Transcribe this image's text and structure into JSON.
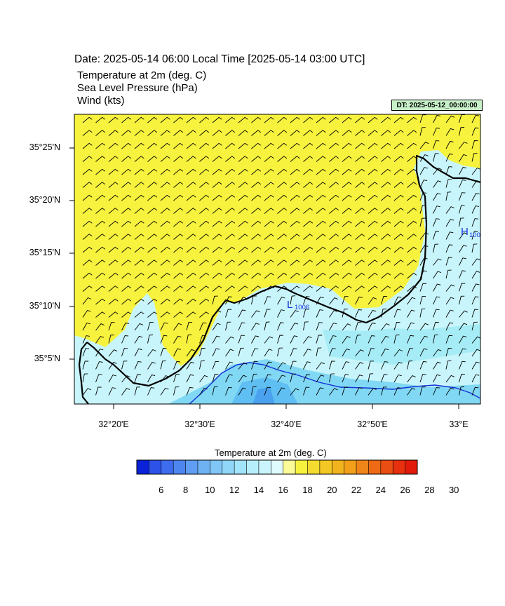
{
  "header": {
    "title": "Date: 2025-05-14  06:00 Local Time [2025-05-14  03:00 UTC]",
    "variables": [
      "Temperature at 2m   (deg. C)",
      "Sea Level Pressure   (hPa)",
      "Wind   (kts)"
    ],
    "dt_label": "DT: 2025-05-12_00:00:00"
  },
  "map": {
    "lat_labels": [
      "35°25'N",
      "35°20'N",
      "35°15'N",
      "35°10'N",
      "35°5'N"
    ],
    "lon_labels": [
      "32°20'E",
      "32°30'E",
      "32°40'E",
      "32°50'E",
      "33°E"
    ],
    "pressure_labels": [
      {
        "letter": "L",
        "value": "1006"
      },
      {
        "letter": "H",
        "value": "100"
      }
    ],
    "colors": {
      "land": "#f7f23d",
      "sea_18": "#c8f5fb",
      "sea_16": "#a6ecf6",
      "sea_14": "#80d8f4",
      "sea_12": "#5fbef2",
      "sea_10": "#4aa1ee",
      "coast": "#000000",
      "isobar": "#1530d6"
    }
  },
  "colorbar": {
    "title": "Temperature at 2m  (deg. C)",
    "labels": [
      "6",
      "8",
      "10",
      "12",
      "14",
      "16",
      "18",
      "20",
      "22",
      "24",
      "26",
      "28",
      "30"
    ],
    "colors": [
      "#0a22d8",
      "#2c52e8",
      "#3e6cee",
      "#4e86f0",
      "#5f9ef2",
      "#6fb2f4",
      "#80c6f6",
      "#90d6f8",
      "#a2e4fa",
      "#b6eefb",
      "#caf5fc",
      "#e0fbfd",
      "#fbfb98",
      "#f7f23d",
      "#f3dc2f",
      "#f3c824",
      "#f2b41e",
      "#f29f1a",
      "#ef8418",
      "#ee6a14",
      "#ea4e12",
      "#e6300e",
      "#e21a0a"
    ]
  }
}
